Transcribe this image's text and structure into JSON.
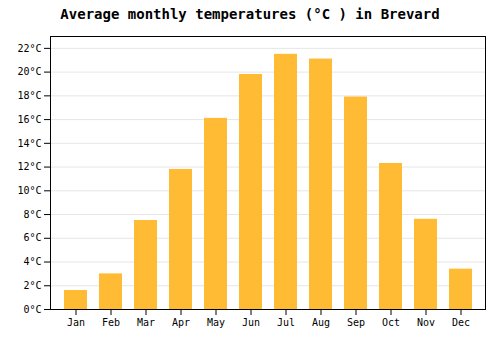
{
  "chart_data": {
    "type": "bar",
    "title": "Average monthly temperatures (°C ) in Brevard",
    "categories": [
      "Jan",
      "Feb",
      "Mar",
      "Apr",
      "May",
      "Jun",
      "Jul",
      "Aug",
      "Sep",
      "Oct",
      "Nov",
      "Dec"
    ],
    "values": [
      1.6,
      3.0,
      7.5,
      11.8,
      16.1,
      19.8,
      21.5,
      21.1,
      17.9,
      12.3,
      7.6,
      3.4
    ],
    "color": "#FFBB33",
    "ylim": [
      0,
      23
    ],
    "yticks": [
      {
        "value": 0,
        "label": "0°C"
      },
      {
        "value": 2,
        "label": "2°C"
      },
      {
        "value": 4,
        "label": "4°C"
      },
      {
        "value": 6,
        "label": "6°C"
      },
      {
        "value": 8,
        "label": "8°C"
      },
      {
        "value": 10,
        "label": "10°C"
      },
      {
        "value": 12,
        "label": "12°C"
      },
      {
        "value": 14,
        "label": "14°C"
      },
      {
        "value": 16,
        "label": "16°C"
      },
      {
        "value": 18,
        "label": "18°C"
      },
      {
        "value": 20,
        "label": "20°C"
      },
      {
        "value": 22,
        "label": "22°C"
      }
    ],
    "grid": true
  }
}
